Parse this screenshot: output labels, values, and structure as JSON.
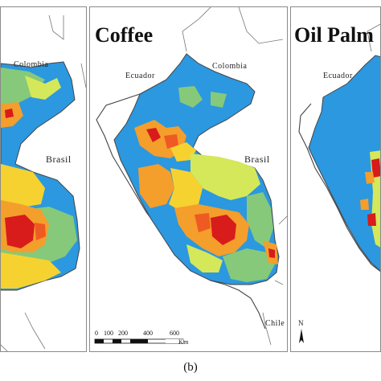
{
  "panels": {
    "left": {
      "country_labels": {
        "colombia": "Colombia",
        "brasil": "Brasil"
      }
    },
    "center": {
      "title": "Coffee",
      "country_labels": {
        "ecuador": "Ecuador",
        "colombia": "Colombia",
        "brasil": "Brasil",
        "chile": "Chile"
      },
      "scale_bar": {
        "ticks": [
          "0",
          "100",
          "200",
          "400",
          "600"
        ],
        "unit": "Km"
      }
    },
    "right": {
      "title": "Oil Palm",
      "country_labels": {
        "ecuador": "Ecuador"
      },
      "north_arrow_label": "N"
    }
  },
  "caption": "(b)",
  "colors": {
    "ocean_blue": "#2b98e0",
    "light_green": "#86c97a",
    "yellow_green": "#d4e85a",
    "yellow": "#f6d231",
    "orange": "#f49e2c",
    "red_orange": "#ef5a22",
    "red": "#d81b1b",
    "outline": "#444444"
  }
}
